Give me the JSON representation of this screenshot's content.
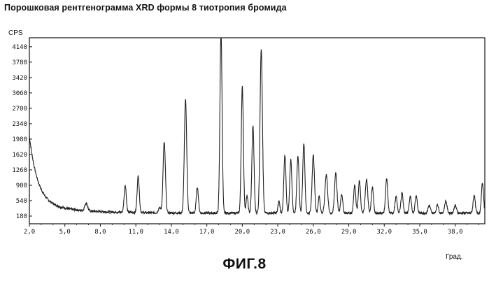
{
  "title": "Порошковая рентгенограмма XRD формы 8 тиотропия бромида",
  "figure_caption": "ФИГ.8",
  "chart_data": {
    "type": "line",
    "title": "Порошковая рентгенограмма XRD формы 8 тиотропия бромида",
    "ylabel": "CPS",
    "xlabel": "Град.",
    "xlim": [
      2.0,
      40.5
    ],
    "ylim": [
      0,
      4350
    ],
    "x_ticks": [
      "2,0",
      "5,0",
      "8,0",
      "11,0",
      "14,0",
      "17,0",
      "20,0",
      "23,0",
      "26,0",
      "29,0",
      "32,0",
      "35,0",
      "38,0"
    ],
    "x_tick_values": [
      2,
      5,
      8,
      11,
      14,
      17,
      20,
      23,
      26,
      29,
      32,
      35,
      38
    ],
    "y_ticks": [
      "180",
      "540",
      "900",
      "1260",
      "1620",
      "1980",
      "2340",
      "2700",
      "3060",
      "3420",
      "3780",
      "4140"
    ],
    "y_tick_values": [
      180,
      540,
      900,
      1260,
      1620,
      1980,
      2340,
      2700,
      3060,
      3420,
      3780,
      4140
    ],
    "grid": false,
    "line_color": "#222222",
    "series": [
      {
        "baseline": {
          "start": 1800,
          "end": 250,
          "decay": 0.7
        },
        "peaks": [
          [
            6.8,
            180,
            0.12
          ],
          [
            10.1,
            640,
            0.09
          ],
          [
            11.2,
            850,
            0.09
          ],
          [
            13.0,
            120,
            0.1
          ],
          [
            13.4,
            1650,
            0.1
          ],
          [
            15.2,
            2650,
            0.1
          ],
          [
            16.2,
            600,
            0.09
          ],
          [
            18.2,
            4300,
            0.09
          ],
          [
            20.0,
            2950,
            0.09
          ],
          [
            20.4,
            400,
            0.08
          ],
          [
            20.9,
            2050,
            0.09
          ],
          [
            21.6,
            3850,
            0.1
          ],
          [
            23.1,
            280,
            0.08
          ],
          [
            23.6,
            1350,
            0.09
          ],
          [
            24.1,
            1250,
            0.09
          ],
          [
            24.7,
            1350,
            0.09
          ],
          [
            25.2,
            1650,
            0.09
          ],
          [
            26.0,
            1350,
            0.1
          ],
          [
            26.5,
            400,
            0.08
          ],
          [
            27.1,
            900,
            0.11
          ],
          [
            27.9,
            950,
            0.1
          ],
          [
            28.4,
            450,
            0.09
          ],
          [
            29.5,
            650,
            0.09
          ],
          [
            29.9,
            750,
            0.09
          ],
          [
            30.5,
            800,
            0.1
          ],
          [
            31.0,
            600,
            0.09
          ],
          [
            32.2,
            800,
            0.09
          ],
          [
            33.0,
            380,
            0.09
          ],
          [
            33.5,
            480,
            0.09
          ],
          [
            34.2,
            380,
            0.09
          ],
          [
            34.7,
            420,
            0.09
          ],
          [
            35.8,
            180,
            0.1
          ],
          [
            36.5,
            200,
            0.09
          ],
          [
            37.2,
            280,
            0.1
          ],
          [
            38.0,
            180,
            0.1
          ],
          [
            39.6,
            420,
            0.09
          ],
          [
            40.3,
            700,
            0.09
          ]
        ]
      }
    ]
  }
}
